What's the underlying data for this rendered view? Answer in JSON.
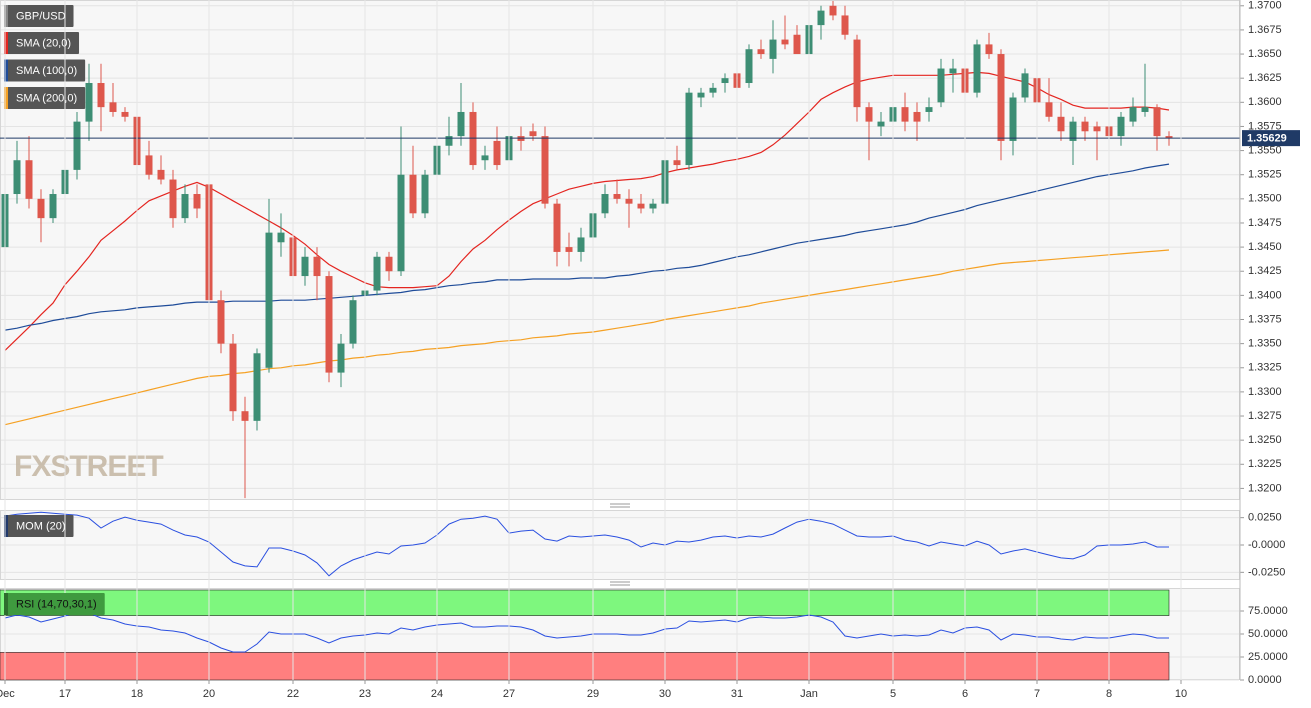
{
  "chart_data": [
    {
      "type": "candlestick",
      "title": "GBP/USD",
      "watermark": "FXSTREET",
      "up_color": "#3d8e74",
      "down_color": "#de574c",
      "open": [
        1.345,
        1.3505,
        1.354,
        1.35,
        1.348,
        1.3505,
        1.353,
        1.358,
        1.362,
        1.36,
        1.359,
        1.3585,
        1.3545,
        1.353,
        1.352,
        1.348,
        1.3505,
        1.3515,
        1.3395,
        1.335,
        1.328,
        1.327,
        1.3325,
        1.3455,
        1.346,
        1.342,
        1.344,
        1.342,
        1.332,
        1.335,
        1.34,
        1.3405,
        1.344,
        1.3425,
        1.3525,
        1.3485,
        1.3525,
        1.3555,
        1.3565,
        1.359,
        1.354,
        1.356,
        1.354,
        1.3565,
        1.357,
        1.3565,
        1.3495,
        1.345,
        1.3445,
        1.346,
        1.3485,
        1.3505,
        1.35,
        1.3495,
        1.349,
        1.3495,
        1.354,
        1.3535,
        1.3605,
        1.361,
        1.362,
        1.363,
        1.362,
        1.3655,
        1.3645,
        1.3665,
        1.367,
        1.365,
        1.368,
        1.37,
        1.369,
        1.3665,
        1.3595,
        1.3575,
        1.358,
        1.3595,
        1.359,
        1.359,
        1.36,
        1.363,
        1.3635,
        1.361,
        1.366,
        1.365,
        1.356,
        1.3605,
        1.3625,
        1.36,
        1.3585,
        1.356,
        1.358,
        1.3575,
        1.3575,
        1.3565,
        1.358,
        1.359,
        1.3595,
        1.3565
      ],
      "high": [
        1.352,
        1.356,
        1.3565,
        1.351,
        1.351,
        1.354,
        1.359,
        1.364,
        1.364,
        1.362,
        1.3595,
        1.359,
        1.356,
        1.3545,
        1.353,
        1.3515,
        1.3515,
        1.352,
        1.3405,
        1.336,
        1.3295,
        1.3345,
        1.35,
        1.3485,
        1.347,
        1.345,
        1.345,
        1.3425,
        1.336,
        1.34,
        1.341,
        1.3445,
        1.3445,
        1.3575,
        1.3555,
        1.353,
        1.357,
        1.3585,
        1.362,
        1.36,
        1.3555,
        1.3575,
        1.3575,
        1.3575,
        1.3578,
        1.3575,
        1.35,
        1.3465,
        1.347,
        1.349,
        1.3515,
        1.352,
        1.351,
        1.3505,
        1.35,
        1.3545,
        1.3555,
        1.3615,
        1.3615,
        1.362,
        1.363,
        1.364,
        1.366,
        1.3665,
        1.3685,
        1.369,
        1.368,
        1.369,
        1.37,
        1.3705,
        1.37,
        1.367,
        1.36,
        1.359,
        1.36,
        1.361,
        1.36,
        1.3605,
        1.3645,
        1.3645,
        1.364,
        1.3665,
        1.3672,
        1.3655,
        1.361,
        1.3635,
        1.3635,
        1.3625,
        1.36,
        1.3585,
        1.3585,
        1.358,
        1.358,
        1.359,
        1.3605,
        1.364,
        1.3598,
        1.357
      ],
      "low": [
        1.344,
        1.3495,
        1.349,
        1.3455,
        1.3475,
        1.35,
        1.352,
        1.356,
        1.357,
        1.3585,
        1.358,
        1.3525,
        1.352,
        1.3515,
        1.347,
        1.3475,
        1.348,
        1.339,
        1.334,
        1.327,
        1.319,
        1.326,
        1.332,
        1.344,
        1.341,
        1.341,
        1.3395,
        1.331,
        1.3305,
        1.3345,
        1.338,
        1.34,
        1.3415,
        1.342,
        1.348,
        1.348,
        1.352,
        1.3545,
        1.3555,
        1.353,
        1.353,
        1.353,
        1.3535,
        1.355,
        1.356,
        1.349,
        1.343,
        1.343,
        1.3435,
        1.3455,
        1.348,
        1.3495,
        1.347,
        1.3485,
        1.3485,
        1.349,
        1.353,
        1.353,
        1.3595,
        1.3605,
        1.361,
        1.3605,
        1.3615,
        1.3645,
        1.363,
        1.3655,
        1.365,
        1.3645,
        1.3665,
        1.3685,
        1.3665,
        1.358,
        1.354,
        1.3565,
        1.356,
        1.357,
        1.356,
        1.358,
        1.3595,
        1.361,
        1.36,
        1.3605,
        1.3645,
        1.354,
        1.3545,
        1.36,
        1.3595,
        1.358,
        1.356,
        1.3535,
        1.356,
        1.354,
        1.3555,
        1.3555,
        1.3575,
        1.3585,
        1.355,
        1.3555
      ],
      "close": [
        1.3505,
        1.354,
        1.35,
        1.348,
        1.3505,
        1.353,
        1.358,
        1.362,
        1.3595,
        1.359,
        1.3585,
        1.3535,
        1.3525,
        1.352,
        1.348,
        1.3505,
        1.349,
        1.3395,
        1.335,
        1.328,
        1.327,
        1.334,
        1.3465,
        1.3465,
        1.342,
        1.344,
        1.342,
        1.332,
        1.335,
        1.3395,
        1.3405,
        1.344,
        1.3425,
        1.3525,
        1.3485,
        1.3525,
        1.3555,
        1.3565,
        1.359,
        1.3535,
        1.3545,
        1.3535,
        1.3565,
        1.356,
        1.3565,
        1.3495,
        1.3445,
        1.3445,
        1.346,
        1.3485,
        1.3505,
        1.35,
        1.3495,
        1.349,
        1.3495,
        1.354,
        1.3535,
        1.361,
        1.361,
        1.3615,
        1.3625,
        1.3615,
        1.3655,
        1.365,
        1.3665,
        1.366,
        1.365,
        1.368,
        1.3695,
        1.369,
        1.367,
        1.3595,
        1.358,
        1.358,
        1.3595,
        1.358,
        1.358,
        1.3595,
        1.3635,
        1.3635,
        1.361,
        1.366,
        1.365,
        1.356,
        1.3605,
        1.363,
        1.36,
        1.3585,
        1.357,
        1.358,
        1.357,
        1.357,
        1.3565,
        1.3585,
        1.3595,
        1.3595,
        1.3565,
        1.3563
      ],
      "series": [
        {
          "name": "SMA (20,0)",
          "color": "#e42520",
          "values": [
            1.3343,
            1.3355,
            1.3367,
            1.338,
            1.3392,
            1.3411,
            1.3425,
            1.344,
            1.3457,
            1.3467,
            1.3477,
            1.3488,
            1.3498,
            1.3503,
            1.3508,
            1.3513,
            1.3517,
            1.3512,
            1.3505,
            1.3498,
            1.3491,
            1.3484,
            1.3477,
            1.347,
            1.3462,
            1.3453,
            1.3442,
            1.3432,
            1.3425,
            1.3419,
            1.3413,
            1.3409,
            1.3408,
            1.3408,
            1.3408,
            1.3409,
            1.341,
            1.342,
            1.3435,
            1.3448,
            1.3457,
            1.3468,
            1.3478,
            1.3487,
            1.3495,
            1.35,
            1.3505,
            1.351,
            1.3513,
            1.3516,
            1.3518,
            1.3519,
            1.352,
            1.3521,
            1.3523,
            1.3527,
            1.353,
            1.3532,
            1.3534,
            1.3536,
            1.3539,
            1.3541,
            1.3544,
            1.3548,
            1.3556,
            1.3566,
            1.3578,
            1.359,
            1.3603,
            1.361,
            1.3616,
            1.3621,
            1.3624,
            1.3626,
            1.3628,
            1.3628,
            1.3628,
            1.3628,
            1.3628,
            1.3629,
            1.363,
            1.3631,
            1.363,
            1.3627,
            1.3624,
            1.3621,
            1.3615,
            1.3608,
            1.3603,
            1.3597,
            1.3594,
            1.3594,
            1.3594,
            1.3594,
            1.3595,
            1.3595,
            1.3594,
            1.3592
          ]
        },
        {
          "name": "SMA (100,0)",
          "color": "#1f4c99",
          "values": [
            1.3364,
            1.3366,
            1.3369,
            1.3371,
            1.3374,
            1.3376,
            1.3378,
            1.3381,
            1.3383,
            1.3384,
            1.3385,
            1.3387,
            1.3388,
            1.3389,
            1.339,
            1.3392,
            1.3393,
            1.3393,
            1.3393,
            1.3394,
            1.3394,
            1.3394,
            1.3394,
            1.3395,
            1.3395,
            1.3395,
            1.3396,
            1.3397,
            1.3398,
            1.3399,
            1.34,
            1.3401,
            1.3402,
            1.3403,
            1.3405,
            1.3406,
            1.3408,
            1.341,
            1.3411,
            1.3413,
            1.3414,
            1.3416,
            1.3416,
            1.3416,
            1.3417,
            1.3417,
            1.3417,
            1.3417,
            1.3418,
            1.3418,
            1.3418,
            1.342,
            1.3421,
            1.3423,
            1.3425,
            1.3426,
            1.3428,
            1.3429,
            1.3431,
            1.3434,
            1.3437,
            1.344,
            1.3442,
            1.3445,
            1.3448,
            1.3451,
            1.3454,
            1.3456,
            1.3458,
            1.346,
            1.3462,
            1.3465,
            1.3467,
            1.3469,
            1.3471,
            1.3473,
            1.3476,
            1.348,
            1.3483,
            1.3486,
            1.3489,
            1.3493,
            1.3496,
            1.3499,
            1.3502,
            1.3505,
            1.3508,
            1.3511,
            1.3514,
            1.3517,
            1.352,
            1.3523,
            1.3525,
            1.3527,
            1.3529,
            1.3532,
            1.3534,
            1.3536
          ]
        },
        {
          "name": "SMA (200,0)",
          "color": "#f5a124",
          "values": [
            1.3266,
            1.3269,
            1.3272,
            1.3275,
            1.3278,
            1.3281,
            1.3284,
            1.3287,
            1.329,
            1.3293,
            1.3296,
            1.3299,
            1.3302,
            1.3305,
            1.3308,
            1.3311,
            1.3314,
            1.3316,
            1.3317,
            1.3319,
            1.332,
            1.3322,
            1.3324,
            1.3325,
            1.3327,
            1.3328,
            1.333,
            1.3332,
            1.3333,
            1.3335,
            1.3336,
            1.3338,
            1.3339,
            1.3341,
            1.3342,
            1.3344,
            1.3345,
            1.3346,
            1.3348,
            1.3349,
            1.335,
            1.3352,
            1.3353,
            1.3354,
            1.3356,
            1.3357,
            1.3358,
            1.336,
            1.3361,
            1.3362,
            1.3364,
            1.3366,
            1.3368,
            1.337,
            1.3372,
            1.3375,
            1.3377,
            1.3379,
            1.3381,
            1.3383,
            1.3385,
            1.3387,
            1.3389,
            1.3392,
            1.3394,
            1.3396,
            1.3398,
            1.34,
            1.3402,
            1.3404,
            1.3406,
            1.3408,
            1.341,
            1.3412,
            1.3414,
            1.3416,
            1.3418,
            1.342,
            1.3422,
            1.3425,
            1.3427,
            1.3429,
            1.3431,
            1.3433,
            1.3434,
            1.3435,
            1.3436,
            1.3437,
            1.3438,
            1.3439,
            1.344,
            1.3441,
            1.3442,
            1.3443,
            1.3444,
            1.3445,
            1.3446,
            1.3447
          ]
        }
      ],
      "last_price": 1.35629,
      "last_price_color": "#1f3a66",
      "ylim": [
        1.3188,
        1.3706
      ],
      "yticks": [
        {
          "value": 1.32,
          "label": "1.3200"
        },
        {
          "value": 1.3225,
          "label": "1.3225"
        },
        {
          "value": 1.325,
          "label": "1.3250"
        },
        {
          "value": 1.3275,
          "label": "1.3275"
        },
        {
          "value": 1.33,
          "label": "1.3300"
        },
        {
          "value": 1.3325,
          "label": "1.3325"
        },
        {
          "value": 1.335,
          "label": "1.3350"
        },
        {
          "value": 1.3375,
          "label": "1.3375"
        },
        {
          "value": 1.34,
          "label": "1.3400"
        },
        {
          "value": 1.3425,
          "label": "1.3425"
        },
        {
          "value": 1.345,
          "label": "1.3450"
        },
        {
          "value": 1.3475,
          "label": "1.3475"
        },
        {
          "value": 1.35,
          "label": "1.3500"
        },
        {
          "value": 1.3525,
          "label": "1.3525"
        },
        {
          "value": 1.355,
          "label": "1.3550"
        },
        {
          "value": 1.3575,
          "label": "1.3575"
        },
        {
          "value": 1.36,
          "label": "1.3600"
        },
        {
          "value": 1.3625,
          "label": "1.3625"
        },
        {
          "value": 1.365,
          "label": "1.3650"
        },
        {
          "value": 1.3675,
          "label": "1.3675"
        },
        {
          "value": 1.37,
          "label": "1.3700"
        }
      ],
      "grid": true
    },
    {
      "type": "line",
      "title": "MOM (20)",
      "color": "#2a4fe0",
      "values": [
        0.0264,
        0.0282,
        0.0291,
        0.03,
        0.0291,
        0.0282,
        0.0273,
        0.0245,
        0.0155,
        0.0218,
        0.0255,
        0.0227,
        0.0209,
        0.0191,
        0.0136,
        0.0091,
        0.0073,
        0.0027,
        -0.0064,
        -0.0155,
        -0.0191,
        -0.02,
        -0.0027,
        -0.0027,
        -0.0055,
        -0.0091,
        -0.0164,
        -0.0282,
        -0.0191,
        -0.0136,
        -0.01,
        -0.0064,
        -0.0082,
        -0.0009,
        0.0,
        0.0018,
        0.0091,
        0.0191,
        0.0236,
        0.0245,
        0.0264,
        0.0236,
        0.0109,
        0.0127,
        0.0136,
        0.0055,
        0.0036,
        0.0082,
        0.0073,
        0.0082,
        0.0091,
        0.0073,
        0.0045,
        -0.0018,
        0.0018,
        0.0,
        0.0036,
        0.0027,
        0.0045,
        0.0073,
        0.0082,
        0.0064,
        0.0082,
        0.0073,
        0.01,
        0.0155,
        0.0209,
        0.0236,
        0.0218,
        0.0191,
        0.0136,
        0.0082,
        0.0073,
        0.0073,
        0.0082,
        0.0045,
        0.0027,
        -0.0009,
        0.0027,
        0.0009,
        -0.0009,
        0.0036,
        0.0,
        -0.0082,
        -0.0055,
        -0.0036,
        -0.0064,
        -0.0091,
        -0.0118,
        -0.0127,
        -0.0091,
        -0.0009,
        0.0,
        0.0,
        0.0009,
        0.0027,
        -0.0018,
        -0.0018
      ],
      "ylim": [
        -0.032,
        0.032
      ],
      "yticks": [
        {
          "value": 0.025,
          "label": "0.0250"
        },
        {
          "value": 0,
          "label": "-0.0000"
        },
        {
          "value": -0.025,
          "label": "-0.0250"
        }
      ],
      "grid": true
    },
    {
      "type": "line",
      "title": "RSI (14,70,30,1)",
      "color": "#2a4fe0",
      "overbought": 70,
      "oversold": 30,
      "overbought_color": "#7ef77e",
      "oversold_color": "#ff7f7f",
      "categories": [
        "Dec",
        null,
        null,
        null,
        null,
        "17",
        null,
        null,
        null,
        null,
        null,
        "18",
        null,
        null,
        null,
        null,
        null,
        "20",
        null,
        null,
        null,
        null,
        null,
        null,
        "22",
        null,
        null,
        null,
        null,
        null,
        "23",
        null,
        null,
        null,
        null,
        null,
        "24",
        null,
        null,
        null,
        null,
        null,
        "27",
        null,
        null,
        null,
        null,
        null,
        null,
        "29",
        null,
        null,
        null,
        null,
        null,
        "30",
        null,
        null,
        null,
        null,
        null,
        "31",
        null,
        null,
        null,
        null,
        null,
        "Jan",
        null,
        null,
        null,
        null,
        null,
        null,
        "5",
        null,
        null,
        null,
        null,
        null,
        "6",
        null,
        null,
        null,
        null,
        null,
        "7",
        null,
        null,
        null,
        null,
        null,
        "8",
        null,
        null,
        null,
        null,
        null,
        "10"
      ],
      "values": [
        67.4,
        70.7,
        68.5,
        63.0,
        66.3,
        69.6,
        73.9,
        72.8,
        67.4,
        65.2,
        60.9,
        58.7,
        57.6,
        54.3,
        53.3,
        51.1,
        45.7,
        41.3,
        34.8,
        30.4,
        30.4,
        39.1,
        52.2,
        50.0,
        50.0,
        50.0,
        45.7,
        40.2,
        45.7,
        47.8,
        48.9,
        51.1,
        50.0,
        56.5,
        54.3,
        57.6,
        59.8,
        60.9,
        62.0,
        57.6,
        57.6,
        58.7,
        58.7,
        57.6,
        54.3,
        47.8,
        45.7,
        46.7,
        47.8,
        50.0,
        50.0,
        50.0,
        48.9,
        48.9,
        51.1,
        55.4,
        56.5,
        64.1,
        63.0,
        64.1,
        65.2,
        63.0,
        67.4,
        68.5,
        67.4,
        67.4,
        68.5,
        70.7,
        68.5,
        63.0,
        47.8,
        45.7,
        47.8,
        50.0,
        47.8,
        48.9,
        47.8,
        48.9,
        54.3,
        51.1,
        56.5,
        57.6,
        54.3,
        43.5,
        50.0,
        48.9,
        46.7,
        46.7,
        44.6,
        43.5,
        46.7,
        45.7,
        45.7,
        47.8,
        50.0,
        48.9,
        45.7,
        45.7,
        null
      ],
      "ylim": [
        0,
        100
      ],
      "yticks": [
        {
          "value": 75,
          "label": "75.0000"
        },
        {
          "value": 50,
          "label": "50.0000"
        },
        {
          "value": 25,
          "label": "25.0000"
        },
        {
          "value": 0,
          "label": "0.0000"
        }
      ],
      "grid": true
    }
  ]
}
